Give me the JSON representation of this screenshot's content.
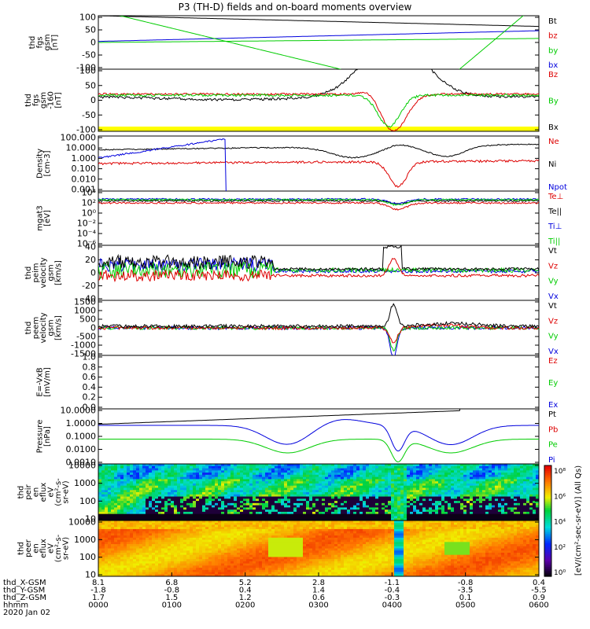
{
  "chart_data": {
    "type": "line",
    "title": "P3 (TH-D) fields and on-board moments overview",
    "date_label": "2020 Jan 02",
    "panels": [
      {
        "ylabel": [
          "thd",
          "fgs",
          "gsm",
          "[nT]"
        ],
        "y_ticks": [
          "100",
          "50",
          "0",
          "-50",
          "-100"
        ],
        "legend": [
          {
            "name": "Bt",
            "color": "#000000"
          },
          {
            "name": "bz",
            "color": "#dd0000"
          },
          {
            "name": "by",
            "color": "#00cc00"
          },
          {
            "name": "bx",
            "color": "#0000dd"
          }
        ]
      },
      {
        "ylabel": [
          "thd",
          "fgs",
          "gsm",
          "-160",
          "[nT]"
        ],
        "y_ticks": [
          "100",
          "50",
          "0",
          "-50",
          "-100"
        ],
        "legend": [
          {
            "name": "Bz",
            "color": "#dd0000"
          },
          {
            "name": "By",
            "color": "#00cc00"
          },
          {
            "name": "Bx",
            "color": "#000000"
          }
        ]
      },
      {
        "ylabel": [
          "Density",
          "[cm-3]"
        ],
        "y_ticks": [
          "100.000",
          "10.000",
          "1.000",
          "0.100",
          "0.010",
          "0.001"
        ],
        "log": true,
        "legend": [
          {
            "name": "Ne",
            "color": "#dd0000"
          },
          {
            "name": "Ni",
            "color": "#000000"
          },
          {
            "name": "Npot",
            "color": "#0000dd"
          }
        ]
      },
      {
        "ylabel": [
          "mgat3",
          "[eV]"
        ],
        "y_ticks": [
          "10⁴",
          "10²",
          "10⁰",
          "10⁻²",
          "10⁻⁴",
          "10⁻⁶"
        ],
        "log": true,
        "legend": [
          {
            "name": "Te⊥",
            "color": "#dd0000"
          },
          {
            "name": "Te||",
            "color": "#000000"
          },
          {
            "name": "Ti⊥",
            "color": "#0000dd"
          },
          {
            "name": "Ti||",
            "color": "#00cc00"
          }
        ]
      },
      {
        "ylabel": [
          "thd",
          "peim",
          "velocity",
          "gsm",
          "[km/s]"
        ],
        "y_ticks": [
          "40",
          "20",
          "0",
          "-20",
          "-40"
        ],
        "legend": [
          {
            "name": "Vt",
            "color": "#000000"
          },
          {
            "name": "Vz",
            "color": "#dd0000"
          },
          {
            "name": "Vy",
            "color": "#00cc00"
          },
          {
            "name": "Vx",
            "color": "#0000dd"
          }
        ]
      },
      {
        "ylabel": [
          "thd",
          "peem",
          "velocity",
          "gsm",
          "[km/s]"
        ],
        "y_ticks": [
          "1500",
          "1000",
          "500",
          "0",
          "-500",
          "-1000",
          "-1500"
        ],
        "legend": [
          {
            "name": "Vt",
            "color": "#000000"
          },
          {
            "name": "Vz",
            "color": "#dd0000"
          },
          {
            "name": "Vy",
            "color": "#00cc00"
          },
          {
            "name": "Vx",
            "color": "#0000dd"
          }
        ]
      },
      {
        "ylabel": [
          "E=-VxB",
          "[mV/m]"
        ],
        "y_ticks": [
          "1.0",
          "0.8",
          "0.6",
          "0.4",
          "0.2",
          "0.0"
        ],
        "legend": [
          {
            "name": "Ez",
            "color": "#dd0000"
          },
          {
            "name": "Ey",
            "color": "#00cc00"
          },
          {
            "name": "Ex",
            "color": "#0000dd"
          }
        ]
      },
      {
        "ylabel": [
          "Pressure",
          "[nPa]"
        ],
        "y_ticks": [
          "10.0000",
          "1.0000",
          "0.1000",
          "0.0100",
          "0.0010"
        ],
        "log": true,
        "legend": [
          {
            "name": "Pt",
            "color": "#000000"
          },
          {
            "name": "Pb",
            "color": "#dd0000"
          },
          {
            "name": "Pe",
            "color": "#00cc00"
          },
          {
            "name": "Pi",
            "color": "#0000dd"
          }
        ]
      },
      {
        "ylabel": [
          "thd",
          "peir",
          "en",
          "eflux",
          "eV",
          "(cm²-s-",
          "sr-eV)"
        ],
        "y_ticks": [
          "10000",
          "1000",
          "100",
          "10"
        ],
        "spectrogram": true
      },
      {
        "ylabel": [
          "thd",
          "peer",
          "en",
          "eflux",
          "eV",
          "(cm²-s-",
          "sr-eV)"
        ],
        "y_ticks": [
          "10000",
          "1000",
          "100",
          "10"
        ],
        "spectrogram": true
      }
    ],
    "colorbar": {
      "ticks": [
        "10⁸",
        "10⁶",
        "10⁴",
        "10²",
        "10⁰"
      ],
      "label": "[eV/(cm²-sec-sr-eV)] (All Qs)"
    },
    "x_axis": {
      "row_labels": [
        "thd_X-GSM",
        "thd_Y-GSM",
        "thd_Z-GSM",
        "hhmm"
      ],
      "columns": [
        {
          "x": [
            "8.1",
            "-1.8",
            "1.7",
            "0000"
          ]
        },
        {
          "x": [
            "6.8",
            "-0.8",
            "1.5",
            "0100"
          ]
        },
        {
          "x": [
            "5.2",
            "0.4",
            "1.2",
            "0200"
          ]
        },
        {
          "x": [
            "2.8",
            "1.4",
            "0.6",
            "0300"
          ]
        },
        {
          "x": [
            "-1.1",
            "-0.4",
            "-0.3",
            "0400"
          ]
        },
        {
          "x": [
            "-0.8",
            "-3.5",
            "0.1",
            "0500"
          ]
        },
        {
          "x": [
            "0.4",
            "-5.5",
            "0.9",
            "0600"
          ]
        }
      ]
    }
  }
}
